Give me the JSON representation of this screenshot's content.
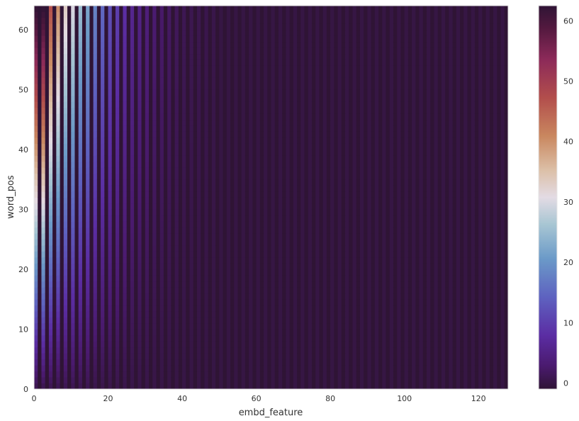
{
  "chart_data": {
    "type": "heatmap",
    "title": "",
    "xlabel": "embd_feature",
    "ylabel": "word_pos",
    "xlim": [
      0,
      128
    ],
    "ylim": [
      0,
      64
    ],
    "x_ticks": [
      0,
      20,
      40,
      60,
      80,
      100,
      120
    ],
    "y_ticks": [
      0,
      10,
      20,
      30,
      40,
      50,
      60
    ],
    "rows": 64,
    "cols": 128,
    "colormap": "twilight_shifted",
    "colorbar": {
      "range": [
        -1,
        62.5
      ],
      "ticks": [
        0,
        10,
        20,
        30,
        40,
        50,
        60
      ]
    },
    "values": [
      {
        "col": 0,
        "min": 1,
        "max": 62
      },
      {
        "col": 1,
        "min": -1,
        "max": -1
      },
      {
        "col": 2,
        "min": 1,
        "max": 62
      },
      {
        "col": 3,
        "min": -1,
        "max": -1
      },
      {
        "col": 4,
        "min": 1,
        "max": 47
      },
      {
        "col": 5,
        "min": -1,
        "max": -1
      },
      {
        "col": 6,
        "min": 1,
        "max": 40
      },
      {
        "col": 7,
        "min": -1,
        "max": -1
      },
      {
        "col": 8,
        "min": 1,
        "max": 33
      },
      {
        "col": 9,
        "min": -1,
        "max": -1
      },
      {
        "col": 10,
        "min": 1,
        "max": 30
      },
      {
        "col": 11,
        "min": -1,
        "max": -1
      },
      {
        "col": 12,
        "min": 1,
        "max": 25
      },
      {
        "col": 13,
        "min": -1,
        "max": -1
      },
      {
        "col": 14,
        "min": 1,
        "max": 22
      },
      {
        "col": 15,
        "min": -1,
        "max": -1
      },
      {
        "col": 16,
        "min": 0.5,
        "max": 18
      },
      {
        "col": 17,
        "min": -1,
        "max": -1
      },
      {
        "col": 18,
        "min": 0.5,
        "max": 15
      },
      {
        "col": 20,
        "min": 0.5,
        "max": 12
      },
      {
        "col": 22,
        "min": 0.5,
        "max": 10
      },
      {
        "col": 24,
        "min": 0.5,
        "max": 8
      },
      {
        "col": 26,
        "min": 0.3,
        "max": 6
      },
      {
        "col": 28,
        "min": 0.3,
        "max": 5
      },
      {
        "col": 30,
        "min": 0.3,
        "max": 4
      },
      {
        "col": 32,
        "min": 0.2,
        "max": 3
      },
      {
        "col": 36,
        "min": 0.1,
        "max": 2
      },
      {
        "col": 40,
        "min": 0.1,
        "max": 1
      },
      {
        "col": 50,
        "min": 0,
        "max": 0.3
      },
      {
        "col": 127,
        "min": -1,
        "max": -1
      }
    ]
  }
}
